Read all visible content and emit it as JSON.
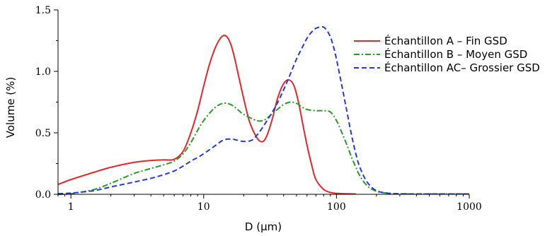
{
  "chart_data": {
    "type": "line",
    "title": "",
    "xlabel": "D (µm)",
    "ylabel": "Volume (%)",
    "xscale": "log",
    "xlim": [
      0.8,
      1000
    ],
    "ylim": [
      0,
      1.5
    ],
    "xticks": [
      1,
      10,
      100,
      1000
    ],
    "xtick_labels": [
      "1",
      "10",
      "100",
      "1000"
    ],
    "yticks": [
      0,
      0.5,
      1.0,
      1.5
    ],
    "ytick_labels": [
      "0.0",
      "0.5",
      "1.0",
      "1.5"
    ],
    "grid": false,
    "legend_position": "top-right",
    "series": [
      {
        "name": "Échantillon A – Fin GSD",
        "color": "#e8262a",
        "dash": "solid",
        "x": [
          0.8,
          1,
          1.5,
          2,
          3,
          4,
          5,
          6,
          7,
          8,
          9,
          10,
          11,
          12,
          13,
          14,
          15,
          16,
          17,
          18,
          20,
          22,
          24,
          26,
          28,
          30,
          33,
          36,
          40,
          44,
          48,
          52,
          56,
          60,
          65,
          70,
          80,
          90,
          100,
          120,
          140
        ],
        "y": [
          0.08,
          0.12,
          0.18,
          0.22,
          0.26,
          0.275,
          0.28,
          0.285,
          0.35,
          0.5,
          0.68,
          0.88,
          1.05,
          1.17,
          1.25,
          1.29,
          1.28,
          1.22,
          1.12,
          1.0,
          0.78,
          0.6,
          0.5,
          0.44,
          0.43,
          0.48,
          0.62,
          0.78,
          0.9,
          0.93,
          0.88,
          0.74,
          0.56,
          0.4,
          0.24,
          0.12,
          0.04,
          0.015,
          0.008,
          0.004,
          0.003
        ]
      },
      {
        "name": "Échantillon B – Moyen GSD",
        "color": "#2a9a2a",
        "dash": "dashdot",
        "x": [
          0.8,
          1,
          1.5,
          2,
          3,
          4,
          5,
          6,
          7,
          8,
          9,
          10,
          12,
          14,
          16,
          18,
          20,
          25,
          28,
          30,
          35,
          40,
          45,
          50,
          55,
          60,
          70,
          80,
          90,
          100,
          110,
          120,
          130,
          140,
          150,
          170,
          200,
          250,
          300,
          400,
          500,
          700,
          1000
        ],
        "y": [
          0.0,
          0.005,
          0.04,
          0.09,
          0.17,
          0.21,
          0.24,
          0.27,
          0.33,
          0.42,
          0.52,
          0.6,
          0.7,
          0.74,
          0.73,
          0.69,
          0.65,
          0.6,
          0.6,
          0.62,
          0.68,
          0.73,
          0.75,
          0.74,
          0.71,
          0.69,
          0.68,
          0.68,
          0.67,
          0.6,
          0.5,
          0.4,
          0.3,
          0.22,
          0.15,
          0.07,
          0.025,
          0.008,
          0.004,
          0.003,
          0.003,
          0.003,
          0.003
        ]
      },
      {
        "name": "Échantillon AC– Grossier GSD",
        "color": "#2638e0",
        "dash": "dashed",
        "x": [
          0.8,
          1,
          1.5,
          2,
          3,
          4,
          5,
          6,
          7,
          8,
          9,
          10,
          12,
          14,
          16,
          18,
          20,
          23,
          26,
          30,
          35,
          40,
          45,
          50,
          55,
          60,
          65,
          70,
          75,
          80,
          85,
          90,
          95,
          100,
          110,
          120,
          130,
          140,
          150,
          170,
          200,
          250,
          300,
          400,
          500,
          700,
          1000
        ],
        "y": [
          0.005,
          0.01,
          0.03,
          0.06,
          0.1,
          0.13,
          0.16,
          0.19,
          0.23,
          0.27,
          0.3,
          0.33,
          0.39,
          0.44,
          0.45,
          0.44,
          0.43,
          0.44,
          0.5,
          0.6,
          0.72,
          0.85,
          0.98,
          1.1,
          1.19,
          1.27,
          1.32,
          1.35,
          1.36,
          1.36,
          1.33,
          1.28,
          1.2,
          1.1,
          0.88,
          0.67,
          0.48,
          0.33,
          0.22,
          0.1,
          0.03,
          0.008,
          0.004,
          0.003,
          0.003,
          0.003,
          0.003
        ]
      }
    ]
  }
}
